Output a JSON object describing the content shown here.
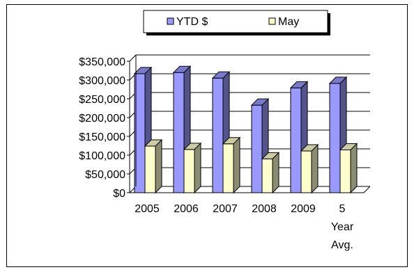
{
  "chart_data": {
    "type": "bar",
    "categories": [
      [
        "2005"
      ],
      [
        "2006"
      ],
      [
        "2007"
      ],
      [
        "2008"
      ],
      [
        "2009"
      ],
      [
        "5",
        "Year",
        "Avg."
      ]
    ],
    "series": [
      {
        "name": "YTD $",
        "color": "#9999ff",
        "values": [
          317000,
          320000,
          305000,
          233000,
          279000,
          291000
        ]
      },
      {
        "name": "May",
        "color": "#ffffcc",
        "values": [
          124000,
          115000,
          130000,
          90000,
          111000,
          114000
        ]
      }
    ],
    "y_ticks": [
      "$0",
      "$50,000",
      "$100,000",
      "$150,000",
      "$200,000",
      "$250,000",
      "$300,000",
      "$350,000"
    ],
    "ylim": [
      0,
      350000
    ],
    "grid": true,
    "legend_position": "top"
  }
}
